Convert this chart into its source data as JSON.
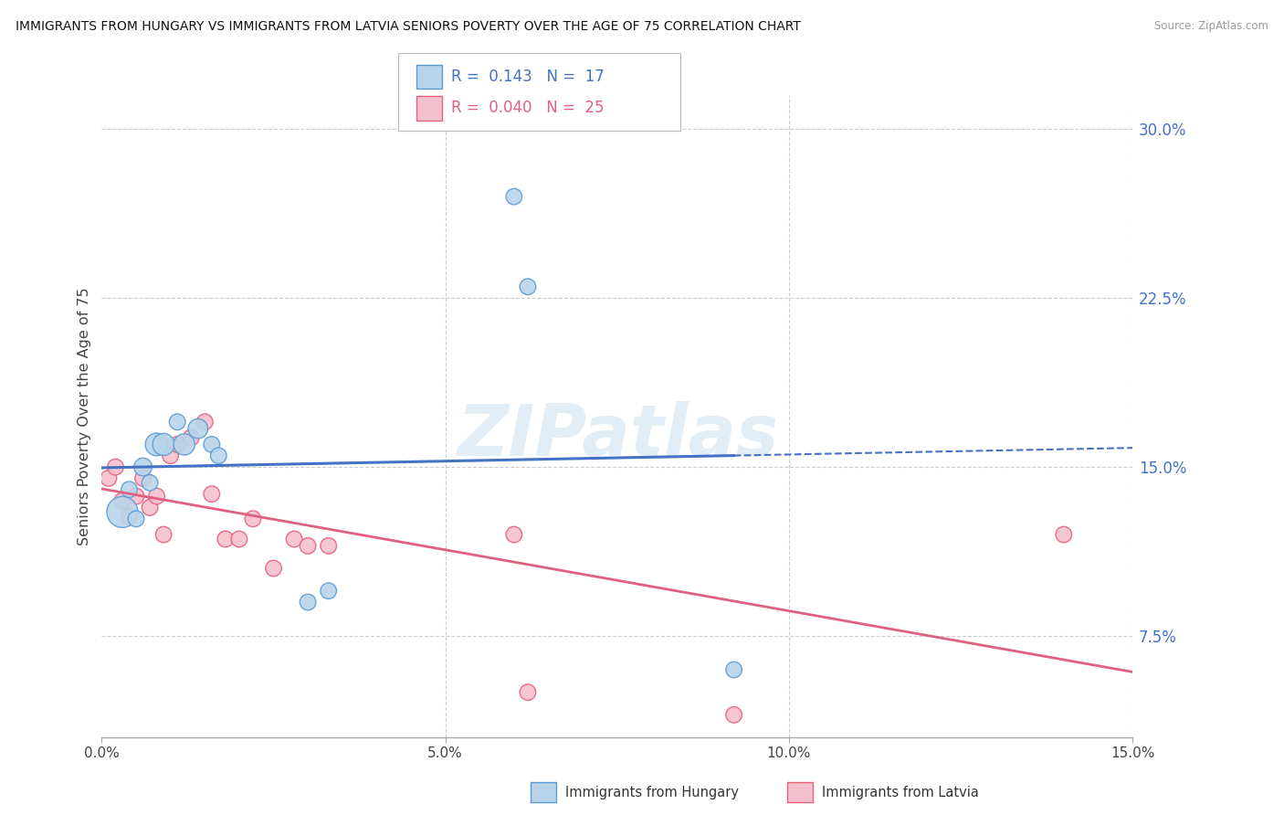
{
  "title": "IMMIGRANTS FROM HUNGARY VS IMMIGRANTS FROM LATVIA SENIORS POVERTY OVER THE AGE OF 75 CORRELATION CHART",
  "source": "Source: ZipAtlas.com",
  "ylabel": "Seniors Poverty Over the Age of 75",
  "xmin": 0.0,
  "xmax": 0.15,
  "ymin": 0.03,
  "ymax": 0.315,
  "hungary_R": 0.143,
  "hungary_N": 17,
  "latvia_R": 0.04,
  "latvia_N": 25,
  "hungary_color": "#b8d4ea",
  "hungary_edge_color": "#5b9bd5",
  "latvia_color": "#f5c0ce",
  "latvia_edge_color": "#e8607a",
  "hungary_line_color": "#4472c4",
  "latvia_line_color": "#e06080",
  "watermark": "ZIPatlas",
  "hungary_x": [
    0.003,
    0.004,
    0.005,
    0.006,
    0.007,
    0.008,
    0.009,
    0.011,
    0.012,
    0.014,
    0.016,
    0.017,
    0.03,
    0.033,
    0.06,
    0.062,
    0.092
  ],
  "hungary_y": [
    0.13,
    0.14,
    0.127,
    0.15,
    0.143,
    0.16,
    0.16,
    0.17,
    0.16,
    0.167,
    0.16,
    0.155,
    0.09,
    0.095,
    0.27,
    0.23,
    0.06
  ],
  "hungary_size": [
    600,
    160,
    160,
    200,
    160,
    320,
    300,
    160,
    280,
    240,
    160,
    160,
    160,
    160,
    160,
    160,
    160
  ],
  "latvia_x": [
    0.001,
    0.002,
    0.003,
    0.004,
    0.005,
    0.006,
    0.007,
    0.008,
    0.009,
    0.01,
    0.011,
    0.013,
    0.015,
    0.016,
    0.018,
    0.02,
    0.022,
    0.025,
    0.028,
    0.03,
    0.033,
    0.06,
    0.062,
    0.092,
    0.14
  ],
  "latvia_y": [
    0.145,
    0.15,
    0.135,
    0.128,
    0.137,
    0.145,
    0.132,
    0.137,
    0.12,
    0.155,
    0.16,
    0.163,
    0.17,
    0.138,
    0.118,
    0.118,
    0.127,
    0.105,
    0.118,
    0.115,
    0.115,
    0.12,
    0.05,
    0.04,
    0.12
  ],
  "latvia_size": [
    160,
    160,
    160,
    160,
    160,
    160,
    160,
    160,
    160,
    160,
    160,
    160,
    160,
    160,
    160,
    160,
    160,
    160,
    160,
    160,
    160,
    160,
    160,
    160,
    160
  ]
}
